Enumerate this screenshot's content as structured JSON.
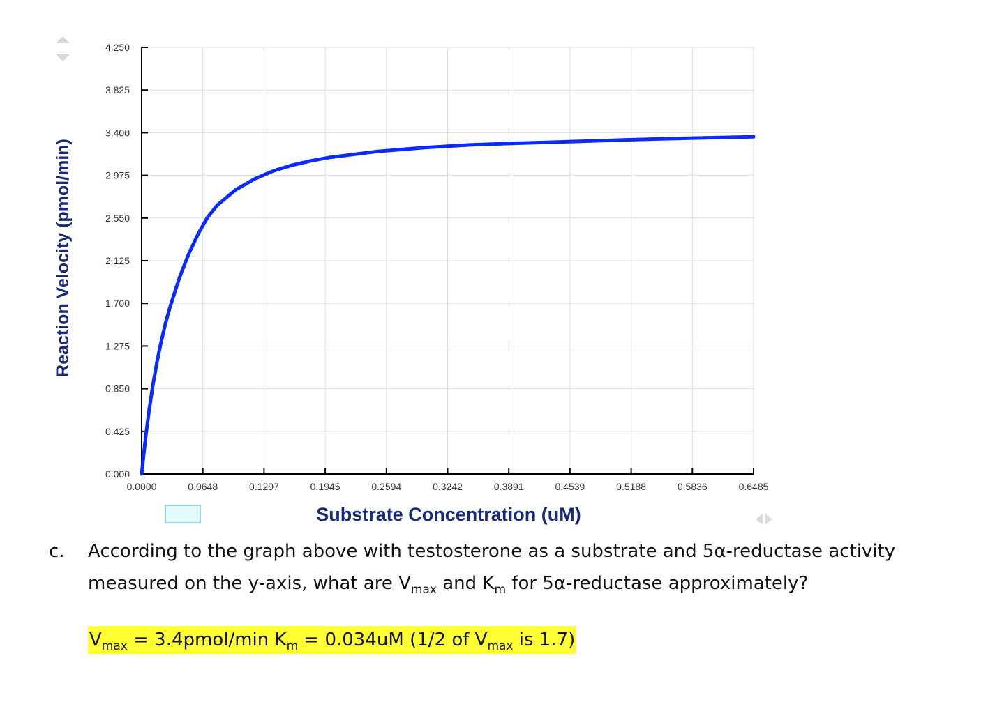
{
  "chart_data": {
    "type": "line",
    "xlabel": "Substrate Concentration (uM)",
    "ylabel": "Reaction Velocity (pmol/min)",
    "x_ticks": [
      "0.0000",
      "0.0648",
      "0.1297",
      "0.1945",
      "0.2594",
      "0.3242",
      "0.3891",
      "0.4539",
      "0.5188",
      "0.5836",
      "0.6485"
    ],
    "y_ticks": [
      "0.000",
      "0.425",
      "0.850",
      "1.275",
      "1.700",
      "2.125",
      "2.550",
      "2.975",
      "3.400",
      "3.825",
      "4.250"
    ],
    "xlim": [
      0,
      0.6485
    ],
    "ylim": [
      0,
      4.25
    ],
    "grid": true,
    "series": [
      {
        "color": "#0a2bff",
        "x": [
          0.0,
          0.004,
          0.008,
          0.012,
          0.016,
          0.02,
          0.025,
          0.03,
          0.04,
          0.05,
          0.06,
          0.07,
          0.08,
          0.1,
          0.12,
          0.14,
          0.16,
          0.18,
          0.2,
          0.25,
          0.3,
          0.35,
          0.4,
          0.45,
          0.5,
          0.55,
          0.6,
          0.6485
        ],
        "y": [
          0.0,
          0.348,
          0.64,
          0.888,
          1.101,
          1.286,
          1.49,
          1.662,
          1.954,
          2.195,
          2.393,
          2.56,
          2.677,
          2.833,
          2.941,
          3.021,
          3.078,
          3.121,
          3.155,
          3.214,
          3.252,
          3.279,
          3.296,
          3.31,
          3.325,
          3.338,
          3.35,
          3.36
        ]
      }
    ]
  },
  "legend_swatch_color": "#e6fbff",
  "question": {
    "letter": "c.",
    "line1": "According to the graph above with testosterone as a substrate and 5α-reductase activity",
    "line2_a": "measured on the y-axis, what are V",
    "line2_vsub": "max",
    "line2_b": " and K",
    "line2_ksub": "m",
    "line2_c": " for 5α-reductase approximately?"
  },
  "answer": {
    "v": "V",
    "v_sub": "max",
    "part1": " = 3.4pmol/min K",
    "k_sub": "m",
    "part2": " = 0.034uM (1/2 of V",
    "v2_sub": "max",
    "part3": " is 1.7)"
  }
}
